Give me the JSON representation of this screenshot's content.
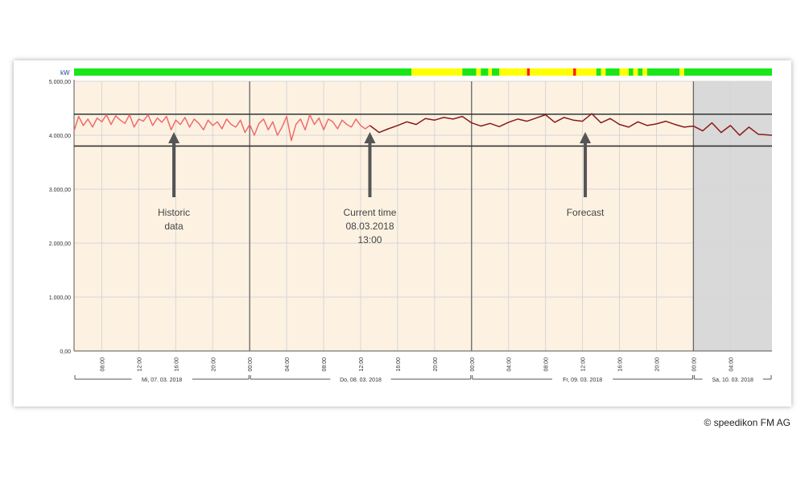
{
  "chart_data": {
    "type": "line",
    "unit_label": "kW",
    "ylim": [
      0,
      5000
    ],
    "y_ticks": [
      0,
      1000,
      2000,
      3000,
      4000,
      5000
    ],
    "y_tick_labels": [
      "0,00",
      "1.000,00",
      "2.000,00",
      "3.000,00",
      "4.000,00",
      "5.000,00"
    ],
    "x_range_hours": [
      5,
      80.5
    ],
    "x_tick_labels": [
      "08:00",
      "12:00",
      "16:00",
      "20:00",
      "00:00",
      "04:00",
      "08:00",
      "12:00",
      "16:00",
      "20:00",
      "00:00",
      "04:00",
      "08:00",
      "12:00",
      "16:00",
      "20:00",
      "00:00",
      "04:00"
    ],
    "x_tick_hours": [
      8,
      12,
      16,
      20,
      24,
      28,
      32,
      36,
      40,
      44,
      48,
      52,
      56,
      60,
      64,
      68,
      72,
      76
    ],
    "day_labels": [
      {
        "label": "Mi, 07. 03. 2018",
        "from": 5,
        "to": 24
      },
      {
        "label": "Do, 08. 03. 2018",
        "from": 24,
        "to": 48
      },
      {
        "label": "Fr, 09. 03. 2018",
        "from": 48,
        "to": 72
      },
      {
        "label": "Sa, 10. 03. 2018",
        "from": 72,
        "to": 80.5
      }
    ],
    "day_boundaries": [
      24,
      48,
      72
    ],
    "threshold_lines": [
      4390,
      3800
    ],
    "historic_until": 37,
    "weekend_from": 72,
    "series": [
      {
        "name": "",
        "color": "#f06b6b",
        "x": [
          5,
          5.5,
          6,
          6.5,
          7,
          7.5,
          8,
          8.5,
          9,
          9.5,
          10,
          10.5,
          11,
          11.5,
          12,
          12.5,
          13,
          13.5,
          14,
          14.5,
          15,
          15.5,
          16,
          16.5,
          17,
          17.5,
          18,
          18.5,
          19,
          19.5,
          20,
          20.5,
          21,
          21.5,
          22,
          22.5,
          23,
          23.5,
          24,
          24.5,
          25,
          25.5,
          26,
          26.5,
          27,
          27.5,
          28,
          28.5,
          29,
          29.5,
          30,
          30.5,
          31,
          31.5,
          32,
          32.5,
          33,
          33.5,
          34,
          34.5,
          35,
          35.5,
          36,
          36.5,
          37
        ],
        "values": [
          4080,
          4350,
          4180,
          4300,
          4150,
          4320,
          4250,
          4380,
          4200,
          4360,
          4280,
          4220,
          4380,
          4150,
          4300,
          4260,
          4380,
          4180,
          4320,
          4240,
          4350,
          4100,
          4280,
          4200,
          4330,
          4150,
          4300,
          4220,
          4100,
          4280,
          4180,
          4250,
          4120,
          4300,
          4200,
          4150,
          4280,
          4050,
          4200,
          4000,
          4220,
          4300,
          4100,
          4250,
          4000,
          4150,
          4350,
          3900,
          4200,
          4300,
          4100,
          4380,
          4200,
          4320,
          4100,
          4300,
          4250,
          4120,
          4280,
          4200,
          4150,
          4300,
          4180,
          4120,
          4180
        ]
      },
      {
        "name": "",
        "color": "#8b1a1a",
        "x": [
          37,
          38,
          39,
          40,
          41,
          42,
          43,
          44,
          45,
          46,
          47,
          48,
          49,
          50,
          51,
          52,
          53,
          54,
          55,
          56,
          57,
          58,
          59,
          60,
          61,
          62,
          63,
          64,
          65,
          66,
          67,
          68,
          69,
          70,
          71,
          72,
          73,
          74,
          75,
          76,
          77,
          78,
          79,
          80.5
        ],
        "values": [
          4180,
          4050,
          4120,
          4180,
          4250,
          4200,
          4310,
          4280,
          4330,
          4300,
          4350,
          4230,
          4170,
          4220,
          4160,
          4240,
          4300,
          4260,
          4320,
          4380,
          4240,
          4330,
          4280,
          4260,
          4400,
          4230,
          4310,
          4200,
          4150,
          4250,
          4180,
          4210,
          4260,
          4200,
          4150,
          4170,
          4080,
          4230,
          4050,
          4180,
          4000,
          4150,
          4020,
          4000
        ]
      }
    ],
    "status_bar": {
      "colors": {
        "green": "#19e619",
        "yellow": "#ffff00",
        "red": "#ff1a1a"
      },
      "segments": [
        {
          "from": 5,
          "to": 41.5,
          "status": "green"
        },
        {
          "from": 41.5,
          "to": 47,
          "status": "yellow"
        },
        {
          "from": 47,
          "to": 48.5,
          "status": "green"
        },
        {
          "from": 48.5,
          "to": 49,
          "status": "yellow"
        },
        {
          "from": 49,
          "to": 49.8,
          "status": "green"
        },
        {
          "from": 49.8,
          "to": 50.2,
          "status": "yellow"
        },
        {
          "from": 50.2,
          "to": 51,
          "status": "green"
        },
        {
          "from": 51,
          "to": 54,
          "status": "yellow"
        },
        {
          "from": 54,
          "to": 54.3,
          "status": "red"
        },
        {
          "from": 54.3,
          "to": 59,
          "status": "yellow"
        },
        {
          "from": 59,
          "to": 59.3,
          "status": "red"
        },
        {
          "from": 59.3,
          "to": 61.5,
          "status": "yellow"
        },
        {
          "from": 61.5,
          "to": 62,
          "status": "green"
        },
        {
          "from": 62,
          "to": 62.5,
          "status": "yellow"
        },
        {
          "from": 62.5,
          "to": 64,
          "status": "green"
        },
        {
          "from": 64,
          "to": 65,
          "status": "yellow"
        },
        {
          "from": 65,
          "to": 65.5,
          "status": "green"
        },
        {
          "from": 65.5,
          "to": 66,
          "status": "yellow"
        },
        {
          "from": 66,
          "to": 66.5,
          "status": "green"
        },
        {
          "from": 66.5,
          "to": 67,
          "status": "yellow"
        },
        {
          "from": 67,
          "to": 70.5,
          "status": "green"
        },
        {
          "from": 70.5,
          "to": 71,
          "status": "yellow"
        },
        {
          "from": 71,
          "to": 80.5,
          "status": "green"
        }
      ]
    },
    "annotations": [
      {
        "at_hour": 15.8,
        "lines": [
          "Historic",
          "data"
        ]
      },
      {
        "at_hour": 37,
        "lines": [
          "Current time",
          "08.03.2018",
          "13:00"
        ]
      },
      {
        "at_hour": 60.3,
        "lines": [
          "Forecast"
        ]
      }
    ],
    "colors": {
      "weekday_bg": "#fdf2e2",
      "weekend_bg": "#d9d9d9",
      "grid": "#d6d6d6",
      "day_line": "#666666",
      "threshold": "#333333",
      "arrow": "#555555"
    }
  },
  "copyright": "© speedikon FM AG"
}
